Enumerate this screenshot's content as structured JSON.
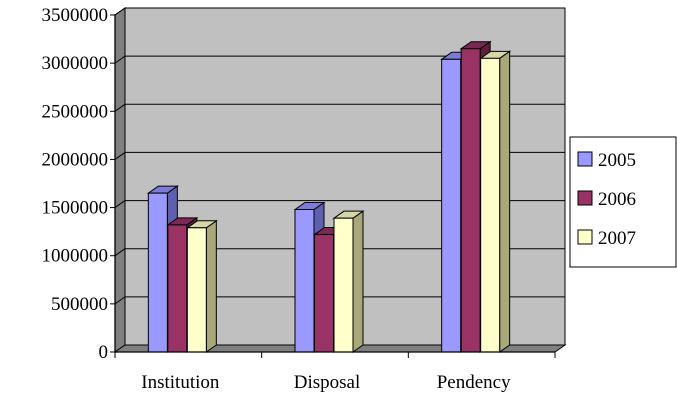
{
  "chart_data": {
    "type": "bar",
    "style": "3d-clustered-column",
    "title": "",
    "xlabel": "",
    "ylabel": "",
    "categories": [
      "Institution",
      "Disposal",
      "Pendency"
    ],
    "series": [
      {
        "name": "2005",
        "values": [
          1650000,
          1480000,
          3040000
        ],
        "color": "#9999ff",
        "side": "#5f5fb0",
        "top": "#7c7cd6"
      },
      {
        "name": "2006",
        "values": [
          1320000,
          1220000,
          3150000
        ],
        "color": "#993366",
        "side": "#5e1f3f",
        "top": "#7a2952"
      },
      {
        "name": "2007",
        "values": [
          1290000,
          1390000,
          3050000
        ],
        "color": "#ffffcc",
        "side": "#a8a87a",
        "top": "#d6d6a8"
      }
    ],
    "ylim": [
      0,
      3500000
    ],
    "yticks": [
      0,
      500000,
      1000000,
      1500000,
      2000000,
      2500000,
      3000000,
      3500000
    ],
    "ytick_labels": [
      "0",
      "500000",
      "1000000",
      "1500000",
      "2000000",
      "2500000",
      "3000000",
      "3500000"
    ],
    "grid": true,
    "legend": "right",
    "colors": {
      "plot_bg": "#c0c0c0",
      "plot_side": "#808080",
      "floor": "#808080",
      "grid": "#000000",
      "axis": "#000000"
    }
  }
}
